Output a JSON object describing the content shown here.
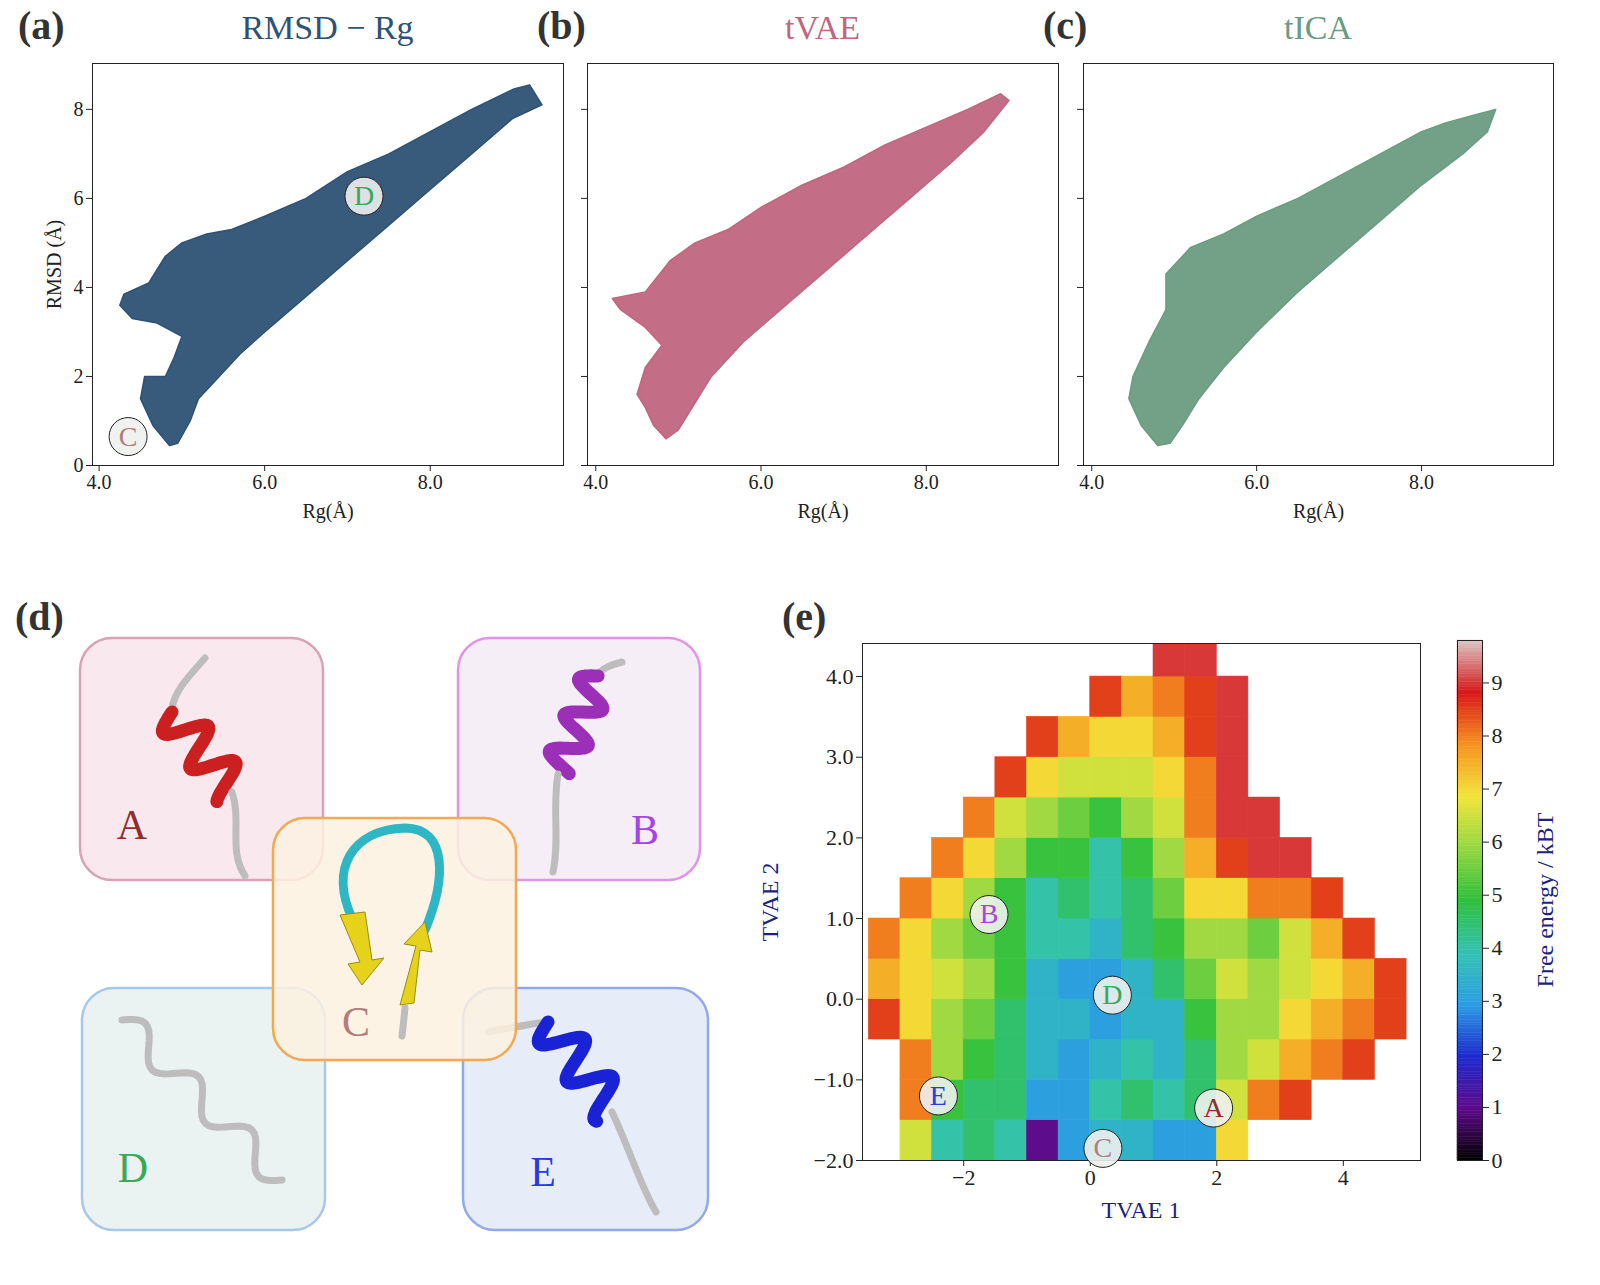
{
  "chart_data": [
    {
      "type": "area",
      "panel_label": "(a)",
      "title": "RMSD − Rg",
      "color": "#2d5275",
      "x_label": "Rg(Å)",
      "y_label": "RMSD (Å)",
      "xlim": [
        3.92,
        9.61
      ],
      "ylim": [
        0,
        9.03
      ],
      "xticks": [
        4,
        6,
        8
      ],
      "yticks": [
        0,
        2,
        4,
        6,
        8
      ],
      "x": [
        4.85,
        4.65,
        4.5,
        4.55,
        4.8,
        4.9,
        5.0,
        4.7,
        4.4,
        4.25,
        4.3,
        4.6,
        4.8,
        5.0,
        5.3,
        5.6,
        6.0,
        6.5,
        7.0,
        7.5,
        8.0,
        8.5,
        9.0,
        9.2,
        9.35,
        9.0,
        8.5,
        8.0,
        7.5,
        7.0,
        6.5,
        6.0,
        5.7,
        5.4,
        5.2,
        5.1,
        4.95
      ],
      "y": [
        0.45,
        0.9,
        1.5,
        2.0,
        2.0,
        2.4,
        2.9,
        3.2,
        3.3,
        3.6,
        3.85,
        4.1,
        4.7,
        5.0,
        5.2,
        5.3,
        5.6,
        6.0,
        6.6,
        7.0,
        7.5,
        8.0,
        8.45,
        8.55,
        8.1,
        7.8,
        7.0,
        6.2,
        5.4,
        4.6,
        3.8,
        3.0,
        2.5,
        1.9,
        1.5,
        1.0,
        0.5
      ],
      "annotations": [
        {
          "text": "D",
          "x": 7.2,
          "y": 6.05,
          "color": "#3aa856"
        },
        {
          "text": "C",
          "x": 4.35,
          "y": 0.65,
          "color": "#b37d7d"
        }
      ]
    },
    {
      "type": "area",
      "panel_label": "(b)",
      "title": "tVAE",
      "color": "#c0667f",
      "x_label": "Rg(Å)",
      "tick_labels": "x",
      "xlim": [
        3.9,
        9.6
      ],
      "ylim": [
        0,
        9.03
      ],
      "xticks": [
        4,
        6,
        8
      ],
      "yticks": [
        0,
        2,
        4,
        6,
        8
      ],
      "x": [
        4.85,
        4.7,
        4.6,
        4.5,
        4.6,
        4.8,
        4.6,
        4.3,
        4.2,
        4.6,
        4.9,
        5.2,
        5.6,
        6.0,
        6.5,
        7.0,
        7.5,
        8.0,
        8.5,
        8.9,
        9.0,
        8.7,
        8.3,
        7.8,
        7.3,
        6.8,
        6.3,
        5.8,
        5.4,
        5.2,
        5.0
      ],
      "y": [
        0.6,
        0.9,
        1.3,
        1.6,
        2.2,
        2.7,
        3.1,
        3.5,
        3.75,
        3.9,
        4.6,
        5.0,
        5.3,
        5.8,
        6.3,
        6.7,
        7.2,
        7.6,
        8.0,
        8.35,
        8.2,
        7.5,
        6.8,
        6.0,
        5.2,
        4.4,
        3.6,
        2.8,
        2.0,
        1.4,
        0.8
      ]
    },
    {
      "type": "area",
      "panel_label": "(c)",
      "title": "tICA",
      "color": "#6a9c82",
      "x_label": "Rg(Å)",
      "tick_labels": "x",
      "xlim": [
        3.9,
        9.6
      ],
      "ylim": [
        0,
        9.03
      ],
      "xticks": [
        4,
        6,
        8
      ],
      "yticks": [
        0,
        2,
        4,
        6,
        8
      ],
      "x": [
        4.8,
        4.6,
        4.45,
        4.5,
        4.7,
        4.9,
        4.9,
        5.2,
        5.6,
        6.0,
        6.5,
        7.0,
        7.5,
        8.0,
        8.3,
        8.7,
        8.9,
        8.8,
        8.5,
        8.0,
        7.5,
        7.0,
        6.5,
        6.0,
        5.6,
        5.3,
        5.1,
        4.95
      ],
      "y": [
        0.45,
        0.9,
        1.5,
        2.0,
        2.8,
        3.5,
        4.3,
        4.9,
        5.2,
        5.6,
        6.0,
        6.5,
        7.0,
        7.5,
        7.7,
        7.9,
        8.0,
        7.5,
        7.0,
        6.3,
        5.5,
        4.7,
        3.9,
        3.0,
        2.2,
        1.5,
        0.9,
        0.5
      ]
    },
    {
      "type": "diagram",
      "panel_label": "(d)",
      "nodes": [
        {
          "label": "A",
          "color": "#8e3030"
        },
        {
          "label": "B",
          "color": "#a545e8"
        },
        {
          "label": "C",
          "color": "#b37d7d"
        },
        {
          "label": "D",
          "color": "#3aa856"
        },
        {
          "label": "E",
          "color": "#2a3ae0"
        }
      ]
    },
    {
      "type": "heatmap",
      "panel_label": "(e)",
      "x_label": "TVAE 1",
      "y_label": "TVAE 2",
      "xlim": [
        -3.6,
        5.22
      ],
      "ylim": [
        -2,
        4.41
      ],
      "xticks": [
        -2,
        0,
        2,
        4
      ],
      "yticks": [
        -2,
        -1,
        0,
        1,
        2,
        3,
        4
      ],
      "x_edges": [
        -3.5,
        -3.0,
        -2.5,
        -2.0,
        -1.5,
        -1.0,
        -0.5,
        0.0,
        0.5,
        1.0,
        1.5,
        2.0,
        2.5,
        3.0,
        3.5,
        4.0,
        4.5,
        5.0
      ],
      "y_edges": [
        -2.0,
        -1.5,
        -1.0,
        -0.5,
        0.0,
        0.5,
        1.0,
        1.5,
        2.0,
        2.5,
        3.0,
        3.5,
        4.0,
        4.5
      ],
      "cells": [
        [
          null,
          6.5,
          4,
          4.5,
          4,
          1,
          3,
          3.5,
          3.5,
          3,
          3,
          7,
          null,
          null,
          null,
          null,
          null
        ],
        [
          null,
          8,
          5,
          4.5,
          4.5,
          3,
          3,
          4,
          4.5,
          4,
          4.5,
          6.5,
          8,
          8.5,
          null,
          null,
          null
        ],
        [
          null,
          8,
          6,
          5,
          4.5,
          3.5,
          3,
          3.5,
          4,
          3.5,
          4.5,
          6,
          6.5,
          7.5,
          8,
          8.5,
          null
        ],
        [
          8.5,
          7,
          6,
          5.5,
          4.5,
          3.5,
          3.5,
          3,
          3.5,
          3.5,
          5,
          6,
          6,
          7,
          7.5,
          8,
          8.5
        ],
        [
          7.5,
          7,
          6.5,
          6,
          5,
          3.5,
          3,
          3,
          3.5,
          4.5,
          5.5,
          6.5,
          6,
          6.5,
          7,
          7.5,
          8.5
        ],
        [
          8,
          7,
          6,
          5.5,
          5,
          4,
          4,
          3.5,
          4.5,
          5,
          6,
          6,
          5.5,
          6.5,
          7.5,
          8.5,
          null
        ],
        [
          null,
          8,
          7,
          6,
          5,
          4,
          4.5,
          4,
          4.5,
          5.5,
          7,
          7,
          8,
          8,
          8.5,
          null,
          null
        ],
        [
          null,
          null,
          8,
          7,
          6,
          5,
          5,
          4,
          5,
          6,
          7.5,
          8.5,
          9,
          9,
          null,
          null,
          null
        ],
        [
          null,
          null,
          null,
          8,
          6.5,
          6,
          5.5,
          5,
          6,
          6.5,
          8,
          9,
          9,
          null,
          null,
          null,
          null
        ],
        [
          null,
          null,
          null,
          null,
          8.5,
          7,
          6.5,
          6.5,
          6.5,
          7,
          8,
          9,
          null,
          null,
          null,
          null,
          null
        ],
        [
          null,
          null,
          null,
          null,
          null,
          8.5,
          7.5,
          7,
          7,
          7.5,
          8.5,
          9,
          null,
          null,
          null,
          null,
          null
        ],
        [
          null,
          null,
          null,
          null,
          null,
          null,
          null,
          8.5,
          7.5,
          8,
          8.5,
          9,
          null,
          null,
          null,
          null,
          null
        ],
        [
          null,
          null,
          null,
          null,
          null,
          null,
          null,
          null,
          null,
          9,
          9,
          null,
          null,
          null,
          null,
          null,
          null
        ]
      ],
      "colorbar": {
        "label": "Free energy / kBT",
        "range": [
          0,
          9.8
        ],
        "ticks": [
          0,
          1,
          2,
          3,
          4,
          5,
          6,
          7,
          8,
          9
        ]
      },
      "annotations": [
        {
          "text": "B",
          "x": -1.6,
          "y": 1.05,
          "color": "#a545e8"
        },
        {
          "text": "D",
          "x": 0.35,
          "y": 0.05,
          "color": "#3aa856"
        },
        {
          "text": "E",
          "x": -2.4,
          "y": -1.2,
          "color": "#2a3ae0"
        },
        {
          "text": "A",
          "x": 1.95,
          "y": -1.35,
          "color": "#8e3030"
        },
        {
          "text": "C",
          "x": 0.2,
          "y": -1.85,
          "color": "#b37d7d"
        }
      ]
    }
  ]
}
